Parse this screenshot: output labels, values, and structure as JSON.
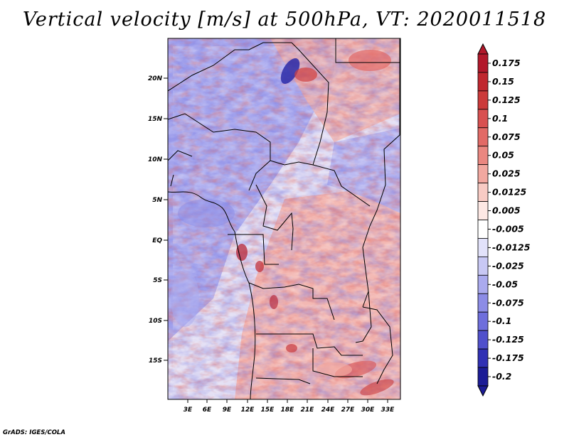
{
  "title": "Vertical velocity [m/s] at 500hPa, VT: 2020011518",
  "footer": "GrADS: IGES/COLA",
  "map": {
    "lon_labels": [
      "3E",
      "6E",
      "9E",
      "12E",
      "15E",
      "18E",
      "21E",
      "24E",
      "27E",
      "30E",
      "33E"
    ],
    "lat_labels": [
      "20N",
      "15N",
      "10N",
      "5N",
      "EQ",
      "5S",
      "10S",
      "15S"
    ],
    "field_description": "shaded vertical velocity field over central Africa"
  },
  "colorbar": {
    "labels": [
      "0.175",
      "0.15",
      "0.125",
      "0.1",
      "0.075",
      "0.05",
      "0.025",
      "0.0125",
      "0.005",
      "-0.005",
      "-0.0125",
      "-0.025",
      "-0.05",
      "-0.075",
      "-0.1",
      "-0.125",
      "-0.175",
      "-0.2"
    ],
    "colors": [
      "#b2182b",
      "#c0272f",
      "#cc3a3a",
      "#d85050",
      "#e26a66",
      "#ea8780",
      "#f2a8a0",
      "#f8cbc4",
      "#fde8e4",
      "#ffffff",
      "#e2e2fa",
      "#c8c8f4",
      "#aaaaee",
      "#8c8ce6",
      "#6e6edc",
      "#5050cc",
      "#3030b4",
      "#1c1c96"
    ]
  }
}
